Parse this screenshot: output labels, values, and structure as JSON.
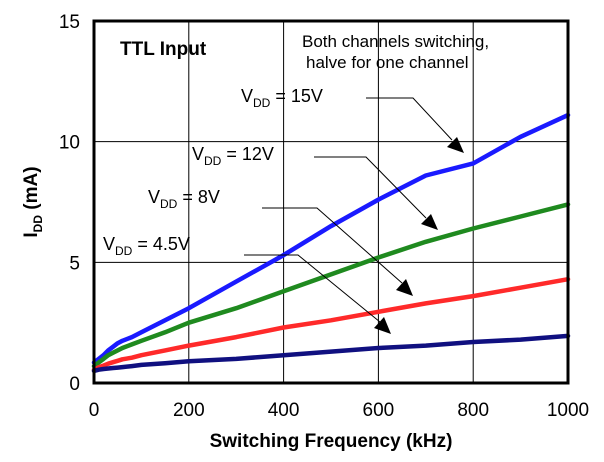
{
  "chart_data": {
    "type": "line",
    "title": "TTL Input",
    "annotation_lines": [
      "Both channels switching,",
      "halve for one channel"
    ],
    "xlabel": "Switching Frequency (kHz)",
    "ylabel": {
      "main": "I",
      "sub": "DD",
      "unit": " (mA)"
    },
    "xlim": [
      0,
      1000
    ],
    "ylim": [
      0,
      15
    ],
    "x_ticks": [
      "0",
      "200",
      "400",
      "600",
      "800",
      "1000"
    ],
    "y_ticks": [
      "0",
      "5",
      "10",
      "15"
    ],
    "grid": true,
    "x": [
      0,
      10,
      20,
      30,
      40,
      50,
      60,
      80,
      100,
      150,
      200,
      300,
      400,
      500,
      600,
      700,
      800,
      900,
      1000
    ],
    "series": [
      {
        "name": "V_DD = 15V",
        "label": {
          "main": "V",
          "sub": "DD",
          "rest": " = 15V"
        },
        "color": "#1a1aff",
        "values": [
          0.85,
          1.0,
          1.15,
          1.35,
          1.5,
          1.65,
          1.75,
          1.9,
          2.1,
          2.6,
          3.1,
          4.2,
          5.3,
          6.5,
          7.6,
          8.6,
          9.1,
          10.2,
          11.1
        ]
      },
      {
        "name": "V_DD = 12V",
        "label": {
          "main": "V",
          "sub": "DD",
          "rest": " = 12V"
        },
        "color": "#1f8a1f",
        "values": [
          0.7,
          0.85,
          1.0,
          1.15,
          1.25,
          1.35,
          1.45,
          1.6,
          1.75,
          2.1,
          2.5,
          3.1,
          3.8,
          4.5,
          5.2,
          5.85,
          6.4,
          6.9,
          7.4
        ]
      },
      {
        "name": "V_DD = 8V",
        "label": {
          "main": "V",
          "sub": "DD",
          "rest": " = 8V"
        },
        "color": "#ff2a2a",
        "values": [
          0.55,
          0.65,
          0.72,
          0.8,
          0.86,
          0.92,
          0.98,
          1.05,
          1.15,
          1.35,
          1.55,
          1.9,
          2.3,
          2.6,
          2.95,
          3.3,
          3.6,
          3.95,
          4.3
        ]
      },
      {
        "name": "V_DD = 4.5V",
        "label": {
          "main": "V",
          "sub": "DD",
          "rest": " = 4.5V"
        },
        "color": "#101080",
        "values": [
          0.5,
          0.55,
          0.58,
          0.6,
          0.62,
          0.64,
          0.66,
          0.7,
          0.75,
          0.82,
          0.9,
          1.0,
          1.15,
          1.3,
          1.45,
          1.55,
          1.7,
          1.8,
          1.95
        ]
      }
    ]
  }
}
